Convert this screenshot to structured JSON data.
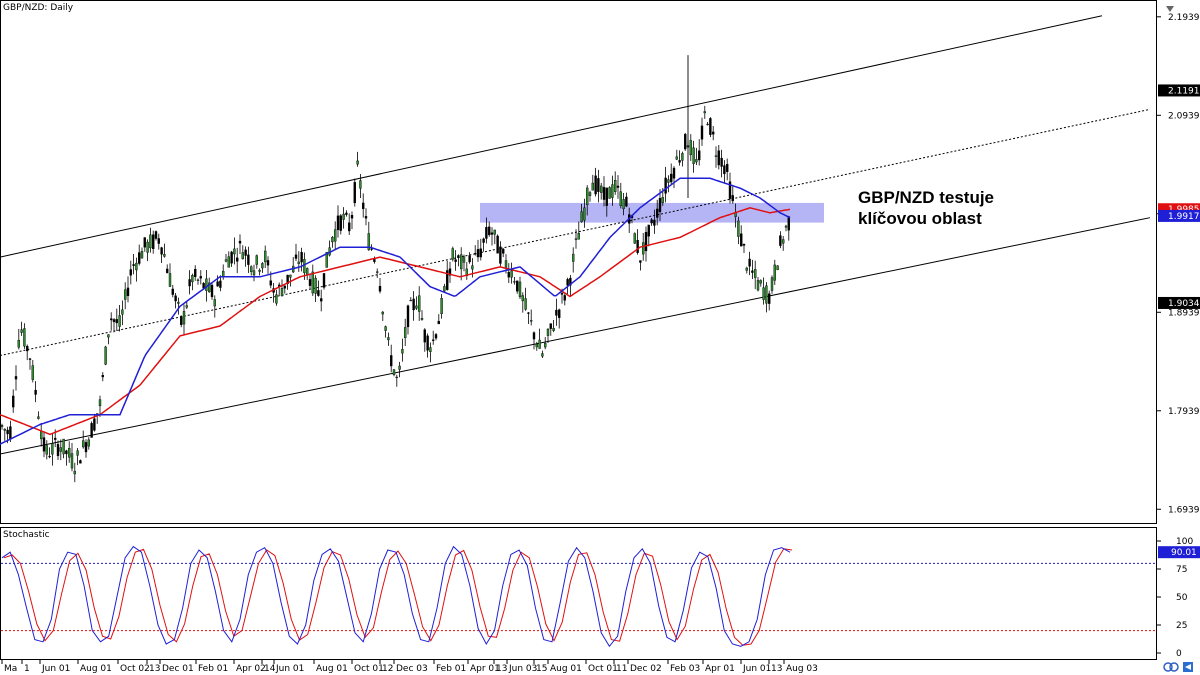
{
  "chart_title": "GBP/NZD: Daily",
  "indicator_title": "Stochastic",
  "annotation": [
    "GBP/NZD testuje",
    "klíčovou oblast"
  ],
  "colors": {
    "candle": "#000000",
    "bull_fill": "#2e8b2e",
    "ma_blue": "#1f1fd6",
    "ma_red": "#e01010",
    "zone": "#a8a8f5",
    "stoch_main": "#1f1fd6",
    "stoch_signal": "#e01010",
    "level_80": "#2020c0",
    "level_20": "#e01010"
  },
  "chart_data": {
    "type": "candlestick",
    "price_axis": {
      "ticks": [
        "2.19395",
        "2.09395",
        "1.99395",
        "1.89395",
        "1.79395",
        "1.69395"
      ],
      "range": [
        1.68,
        2.21
      ]
    },
    "price_tags": [
      {
        "label": "2.11918",
        "value": 2.11918,
        "bg": "#000000",
        "fg": "#ffffff"
      },
      {
        "label": "1.99856",
        "value": 1.99856,
        "bg": "#e01010",
        "fg": "#ffffff"
      },
      {
        "label": "1.99179",
        "value": 1.99179,
        "bg": "#1f1fd6",
        "fg": "#ffffff"
      },
      {
        "label": "1.90341",
        "value": 1.90341,
        "bg": "#000000",
        "fg": "#ffffff"
      }
    ],
    "date_labels": [
      "Ma",
      "1",
      "Jun 01",
      "Aug 01",
      "Oct 02",
      "13",
      "Dec 01",
      "Feb 01",
      "Apr 02",
      "14",
      "Jun 01",
      "Aug 01",
      "Oct 01",
      "12",
      "Dec 03",
      "Feb 01",
      "Apr 01",
      "13",
      "Jun 03",
      "15",
      "Aug 01",
      "Oct 01",
      "11",
      "Dec 02",
      "Feb 03",
      "Apr 01",
      "Jun 01",
      "13",
      "Aug 03"
    ],
    "price_path": [
      [
        0,
        1.78
      ],
      [
        10,
        1.77
      ],
      [
        20,
        1.88
      ],
      [
        30,
        1.85
      ],
      [
        45,
        1.75
      ],
      [
        60,
        1.76
      ],
      [
        75,
        1.74
      ],
      [
        90,
        1.77
      ],
      [
        100,
        1.8
      ],
      [
        110,
        1.89
      ],
      [
        120,
        1.88
      ],
      [
        132,
        1.94
      ],
      [
        145,
        1.96
      ],
      [
        160,
        1.97
      ],
      [
        172,
        1.92
      ],
      [
        182,
        1.88
      ],
      [
        192,
        1.93
      ],
      [
        205,
        1.92
      ],
      [
        215,
        1.91
      ],
      [
        228,
        1.95
      ],
      [
        242,
        1.96
      ],
      [
        255,
        1.94
      ],
      [
        265,
        1.95
      ],
      [
        275,
        1.91
      ],
      [
        290,
        1.93
      ],
      [
        300,
        1.95
      ],
      [
        310,
        1.93
      ],
      [
        320,
        1.91
      ],
      [
        332,
        1.97
      ],
      [
        342,
        1.99
      ],
      [
        350,
        1.98
      ],
      [
        358,
        2.04
      ],
      [
        368,
        1.97
      ],
      [
        378,
        1.94
      ],
      [
        388,
        1.86
      ],
      [
        398,
        1.82
      ],
      [
        408,
        1.89
      ],
      [
        418,
        1.91
      ],
      [
        425,
        1.87
      ],
      [
        432,
        1.86
      ],
      [
        442,
        1.9
      ],
      [
        452,
        1.95
      ],
      [
        465,
        1.94
      ],
      [
        478,
        1.95
      ],
      [
        490,
        1.98
      ],
      [
        502,
        1.95
      ],
      [
        515,
        1.93
      ],
      [
        528,
        1.89
      ],
      [
        542,
        1.85
      ],
      [
        556,
        1.89
      ],
      [
        568,
        1.92
      ],
      [
        580,
        1.98
      ],
      [
        592,
        2.03
      ],
      [
        604,
        2.01
      ],
      [
        615,
        2.02
      ],
      [
        628,
        2.0
      ],
      [
        640,
        1.95
      ],
      [
        652,
        1.98
      ],
      [
        665,
        2.02
      ],
      [
        678,
        2.05
      ],
      [
        688,
        2.07
      ],
      [
        697,
        2.04
      ],
      [
        706,
        2.1
      ],
      [
        716,
        2.06
      ],
      [
        726,
        2.04
      ],
      [
        736,
        1.99
      ],
      [
        748,
        1.94
      ],
      [
        760,
        1.92
      ],
      [
        770,
        1.91
      ],
      [
        780,
        1.96
      ],
      [
        790,
        1.99
      ]
    ],
    "wick_spike": {
      "x": 688,
      "high": 2.155,
      "low": 2.01
    },
    "ma_blue_path": [
      [
        0,
        1.76
      ],
      [
        40,
        1.78
      ],
      [
        70,
        1.79
      ],
      [
        120,
        1.79
      ],
      [
        145,
        1.85
      ],
      [
        180,
        1.9
      ],
      [
        220,
        1.93
      ],
      [
        260,
        1.93
      ],
      [
        300,
        1.94
      ],
      [
        340,
        1.96
      ],
      [
        370,
        1.96
      ],
      [
        400,
        1.95
      ],
      [
        430,
        1.92
      ],
      [
        455,
        1.91
      ],
      [
        480,
        1.93
      ],
      [
        520,
        1.94
      ],
      [
        555,
        1.91
      ],
      [
        580,
        1.93
      ],
      [
        610,
        1.97
      ],
      [
        640,
        2.0
      ],
      [
        680,
        2.03
      ],
      [
        710,
        2.03
      ],
      [
        740,
        2.02
      ],
      [
        760,
        2.01
      ],
      [
        780,
        1.995
      ],
      [
        790,
        1.99
      ]
    ],
    "ma_red_path": [
      [
        0,
        1.79
      ],
      [
        50,
        1.77
      ],
      [
        100,
        1.79
      ],
      [
        140,
        1.82
      ],
      [
        180,
        1.87
      ],
      [
        220,
        1.88
      ],
      [
        260,
        1.91
      ],
      [
        300,
        1.93
      ],
      [
        340,
        1.94
      ],
      [
        380,
        1.95
      ],
      [
        420,
        1.94
      ],
      [
        460,
        1.93
      ],
      [
        500,
        1.94
      ],
      [
        540,
        1.93
      ],
      [
        570,
        1.91
      ],
      [
        600,
        1.93
      ],
      [
        640,
        1.96
      ],
      [
        680,
        1.97
      ],
      [
        720,
        1.99
      ],
      [
        750,
        2.0
      ],
      [
        770,
        1.995
      ],
      [
        790,
        1.9985
      ]
    ],
    "channel_upper": [
      [
        0,
        1.95
      ],
      [
        1102,
        2.195
      ]
    ],
    "channel_mid": [
      [
        0,
        1.85
      ],
      [
        1150,
        2.1
      ]
    ],
    "channel_lower": [
      [
        0,
        1.75
      ],
      [
        1150,
        1.99
      ]
    ],
    "zone": {
      "x0": 480,
      "x1": 824,
      "top": 2.005,
      "bottom": 1.985
    },
    "stochastic": {
      "ticks": [
        "100",
        "75",
        "50",
        "25",
        "0"
      ],
      "range": [
        0,
        100
      ],
      "current": "90.01",
      "levels": [
        80,
        20
      ],
      "pattern": [
        85,
        90,
        70,
        40,
        12,
        10,
        30,
        75,
        90,
        88,
        60,
        20,
        10,
        15,
        50,
        85,
        95,
        90,
        60,
        25,
        8,
        12,
        40,
        80,
        92,
        85,
        55,
        20,
        10,
        30,
        70,
        90,
        94,
        80,
        45,
        15,
        8,
        25,
        65,
        88,
        93,
        82,
        50,
        18,
        10,
        35,
        75,
        92,
        90,
        70,
        35,
        12,
        10,
        40,
        80,
        95,
        88,
        60,
        22,
        8,
        20,
        60,
        88,
        92,
        78,
        40,
        12,
        10,
        45,
        82,
        94,
        85,
        55,
        18,
        6,
        15,
        55,
        85,
        93,
        80,
        42,
        14,
        10,
        38,
        76,
        90,
        86,
        58,
        20,
        8,
        6,
        10,
        30,
        70,
        92,
        94,
        90
      ]
    }
  }
}
